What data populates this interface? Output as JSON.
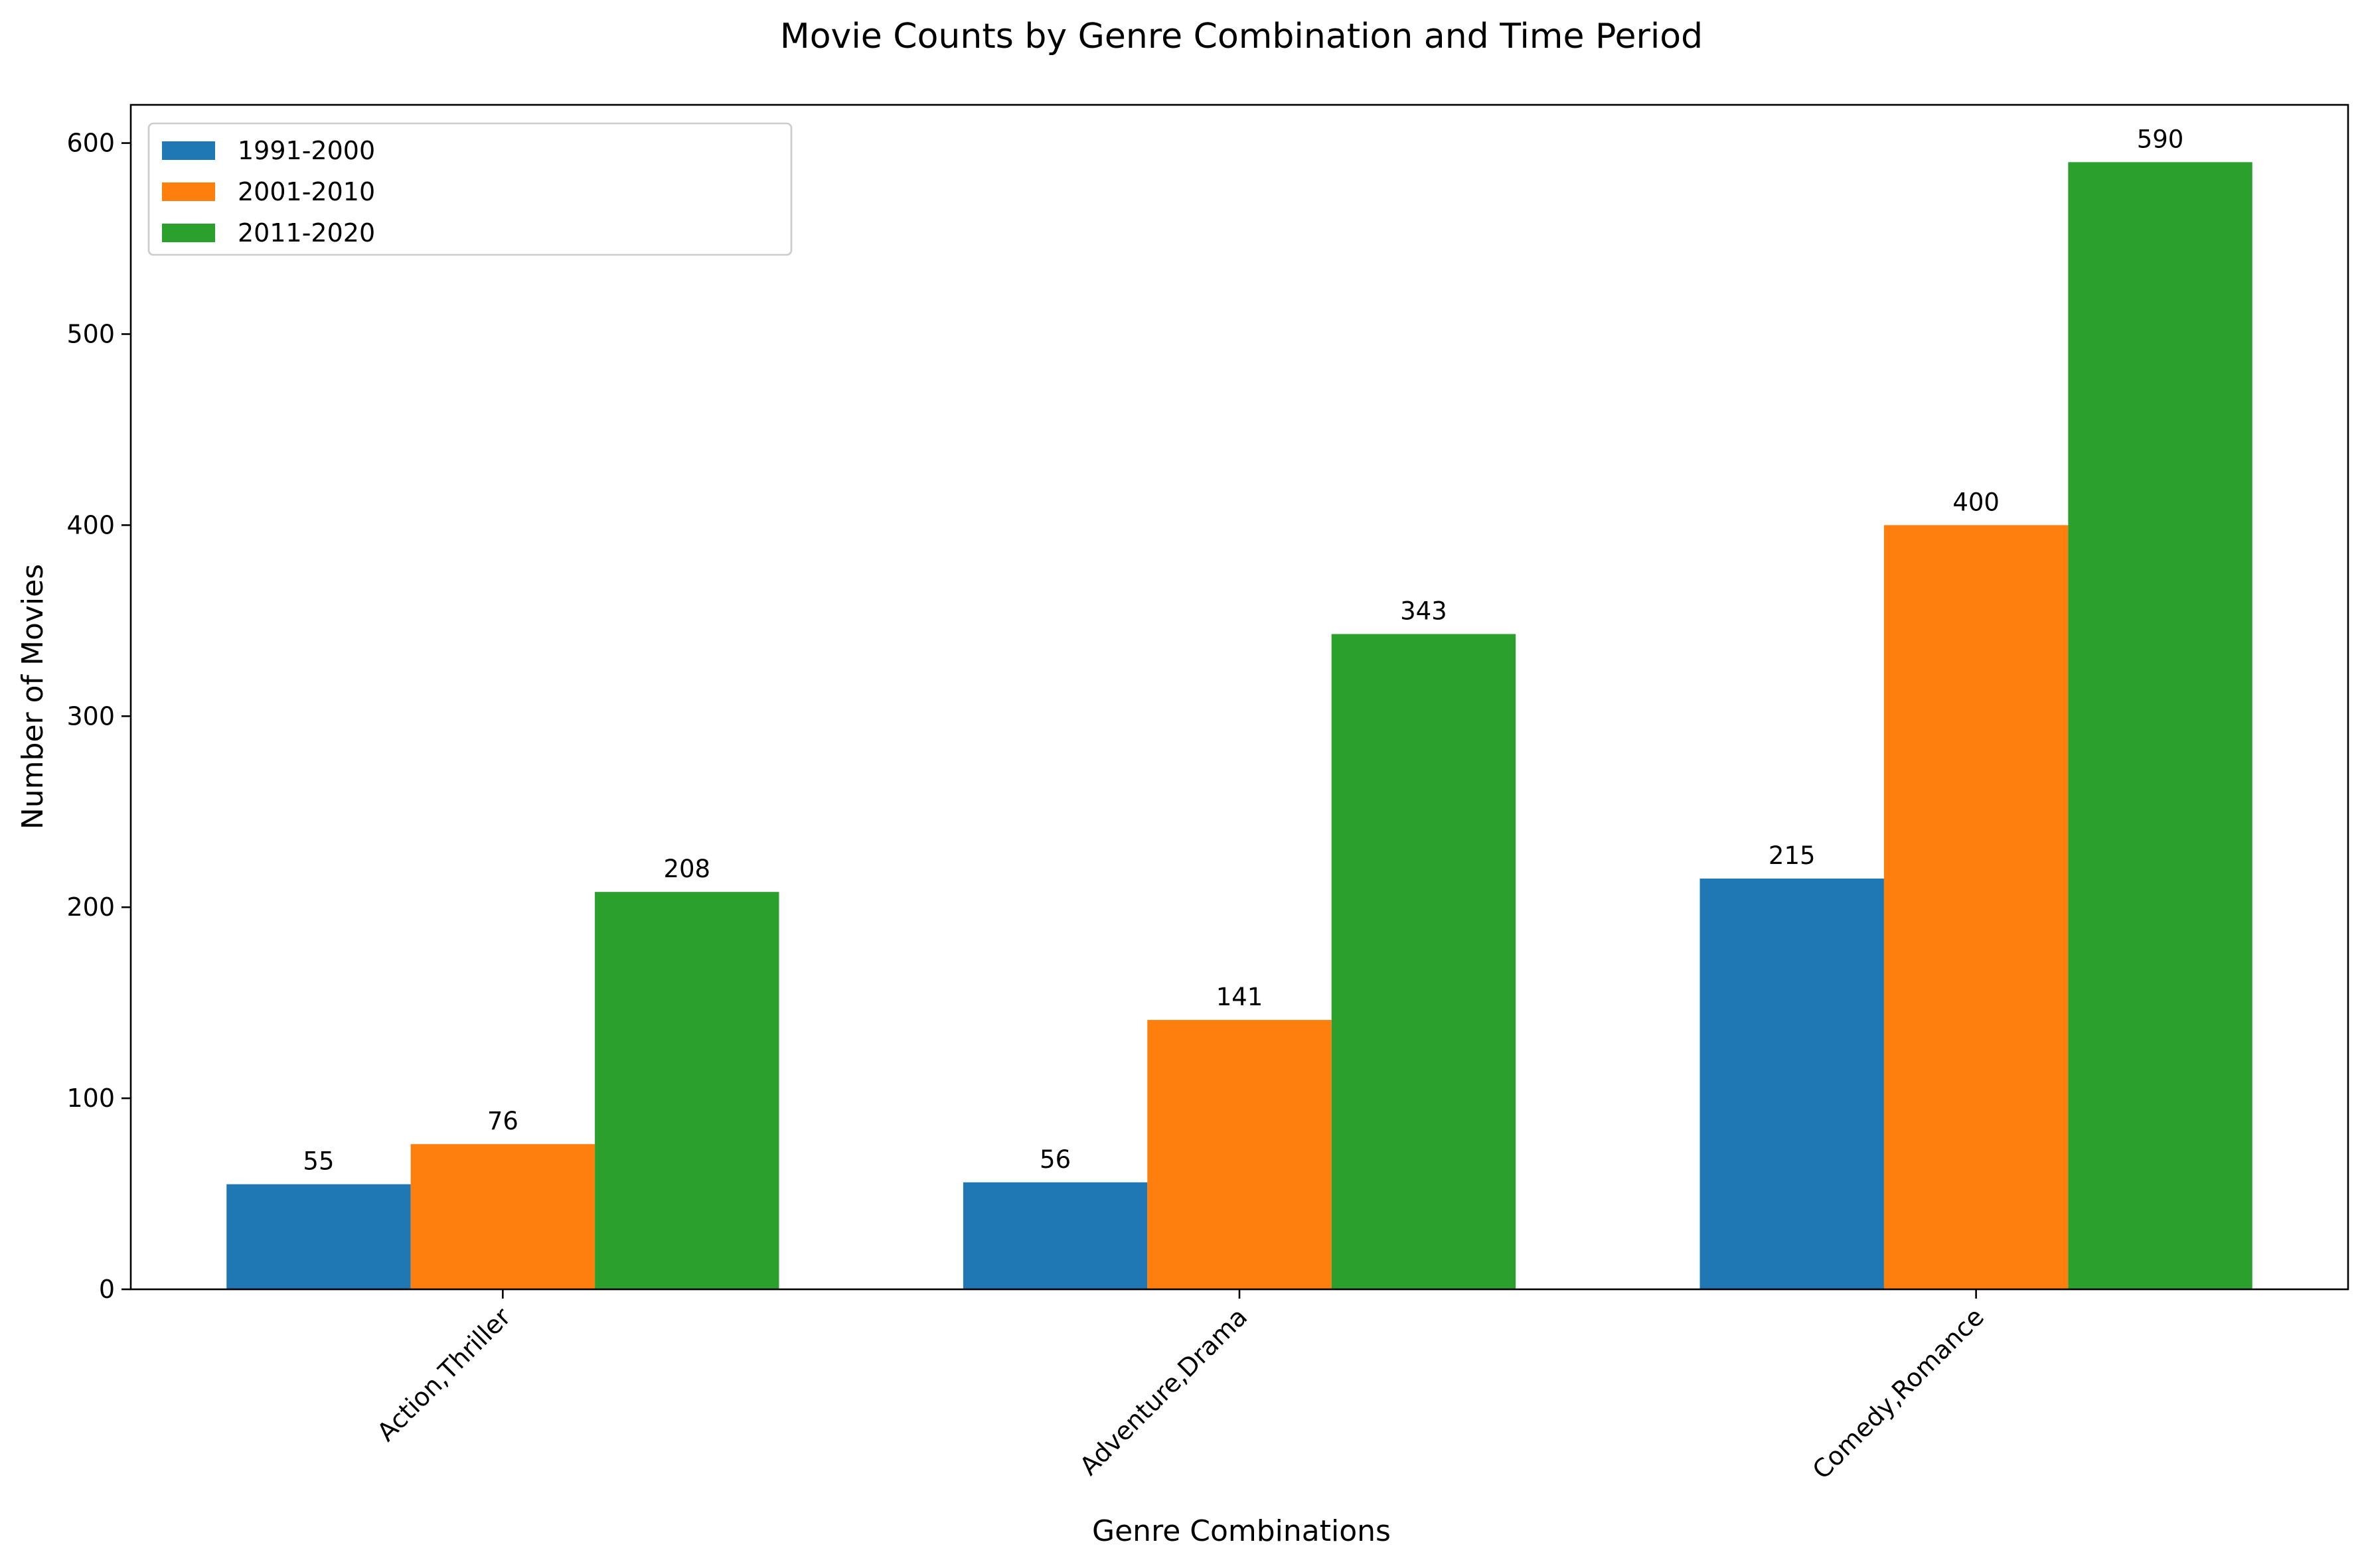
{
  "chart_data": {
    "type": "bar",
    "title": "Movie Counts by Genre Combination and Time Period",
    "xlabel": "Genre Combinations",
    "ylabel": "Number of Movies",
    "categories": [
      "Action,Thriller",
      "Adventure,Drama",
      "Comedy,Romance"
    ],
    "series": [
      {
        "name": "1991-2000",
        "color": "#1f77b4",
        "values": [
          55,
          56,
          215
        ]
      },
      {
        "name": "2001-2010",
        "color": "#ff7f0e",
        "values": [
          76,
          141,
          400
        ]
      },
      {
        "name": "2011-2020",
        "color": "#2ca02c",
        "values": [
          208,
          343,
          590
        ]
      }
    ],
    "ylim": [
      0,
      620
    ],
    "yticks": [
      0,
      100,
      200,
      300,
      400,
      500,
      600
    ],
    "grid": false,
    "legend_position": "top-left"
  }
}
